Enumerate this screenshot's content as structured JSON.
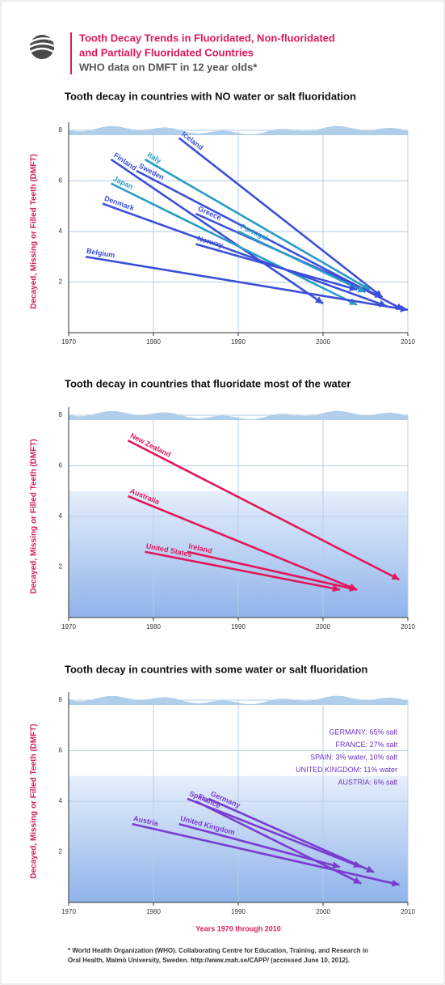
{
  "header": {
    "title": [
      "Tooth Decay Trends in Fluoridated, Non-fluoridated",
      "and Partially Fluoridated Countries"
    ],
    "subtitle": "WHO data on DMFT in 12 year olds*"
  },
  "chart_data": [
    {
      "type": "arrow",
      "title": "Tooth decay in countries with NO water or salt fluoridation",
      "ylabel": "Decayed, Missing or Filled Teeth (DMFT)",
      "xlim": [
        1970,
        2010
      ],
      "xticks": [
        1970,
        1980,
        1990,
        2000,
        2010
      ],
      "ylim": [
        0,
        8
      ],
      "yticks": [
        2,
        4,
        6,
        8
      ],
      "grid": true,
      "series": [
        {
          "name": "Iceland",
          "color": "#3b4fd8",
          "x": [
            1983,
            2007
          ],
          "values": [
            7.7,
            1.4
          ]
        },
        {
          "name": "Italy",
          "color": "#2b9cc4",
          "x": [
            1979,
            2005.5
          ],
          "values": [
            6.85,
            1.7
          ]
        },
        {
          "name": "Finland",
          "color": "#3b4fd8",
          "x": [
            1975,
            2000
          ],
          "values": [
            6.85,
            1.15
          ]
        },
        {
          "name": "Sweden",
          "color": "#3b4fd8",
          "x": [
            1978,
            2009.5
          ],
          "values": [
            6.4,
            0.9
          ]
        },
        {
          "name": "Japan",
          "color": "#2b9cc4",
          "x": [
            1975,
            2004
          ],
          "values": [
            5.9,
            1.1
          ]
        },
        {
          "name": "Denmark",
          "color": "#3b4fd8",
          "x": [
            1974,
            2007.5
          ],
          "values": [
            5.1,
            1.05
          ]
        },
        {
          "name": "Greece",
          "color": "#3b4fd8",
          "x": [
            1985,
            2007
          ],
          "values": [
            4.7,
            1.4
          ]
        },
        {
          "name": "Portugal",
          "color": "#2b9cc4",
          "x": [
            1990,
            2005
          ],
          "values": [
            4.0,
            1.6
          ]
        },
        {
          "name": "Norway",
          "color": "#3b4fd8",
          "x": [
            1985,
            2004
          ],
          "values": [
            3.5,
            1.7
          ]
        },
        {
          "name": "Belgium",
          "color": "#3b4fd8",
          "x": [
            1972,
            2010
          ],
          "values": [
            3.0,
            0.9
          ]
        }
      ]
    },
    {
      "type": "arrow",
      "title": "Tooth decay in countries that fluoridate most of the water",
      "ylabel": "Decayed, Missing or Filled Teeth (DMFT)",
      "xlim": [
        1970,
        2010
      ],
      "xticks": [
        1970,
        1980,
        1990,
        2000,
        2010
      ],
      "ylim": [
        0,
        8
      ],
      "yticks": [
        2,
        4,
        6,
        8
      ],
      "grid": true,
      "shade_below": 5,
      "series": [
        {
          "name": "New Zealand",
          "color": "#e0185a",
          "x": [
            1977,
            2009
          ],
          "values": [
            7.0,
            1.5
          ]
        },
        {
          "name": "Australia",
          "color": "#e0185a",
          "x": [
            1977,
            2004
          ],
          "values": [
            4.8,
            1.1
          ]
        },
        {
          "name": "United States",
          "color": "#e0185a",
          "x": [
            1979,
            2002
          ],
          "values": [
            2.6,
            1.1
          ]
        },
        {
          "name": "Ireland",
          "color": "#e0185a",
          "x": [
            1984,
            2004
          ],
          "values": [
            2.6,
            1.1
          ]
        }
      ]
    },
    {
      "type": "arrow",
      "title": "Tooth decay in countries with some water or salt fluoridation",
      "ylabel": "Decayed, Missing or Filled Teeth (DMFT)",
      "xlabel": "Years 1970 through 2010",
      "xlim": [
        1970,
        2010
      ],
      "xticks": [
        1970,
        1980,
        1990,
        2000,
        2010
      ],
      "ylim": [
        0,
        8
      ],
      "yticks": [
        2,
        4,
        6,
        8
      ],
      "grid": true,
      "shade_below": 5,
      "notes": [
        "GERMANY: 65% salt",
        "FRANCE: 27% salt",
        "SPAIN: 3% water, 10% salt",
        "UNITED KINGDOM: 11% water",
        "AUSTRIA: 6% salt"
      ],
      "notes_color": "#6a35c4",
      "series": [
        {
          "name": "Germany",
          "color": "#7a3ccf",
          "x": [
            1986.5,
            2006
          ],
          "values": [
            4.1,
            1.2
          ]
        },
        {
          "name": "France",
          "color": "#7a3ccf",
          "x": [
            1985,
            2004.5
          ],
          "values": [
            4.0,
            0.75
          ]
        },
        {
          "name": "Spain",
          "color": "#7a3ccf",
          "x": [
            1984,
            2004.5
          ],
          "values": [
            4.1,
            1.4
          ]
        },
        {
          "name": "United Kingdom",
          "color": "#7a3ccf",
          "x": [
            1983,
            2002
          ],
          "values": [
            3.1,
            1.4
          ]
        },
        {
          "name": "Austria",
          "color": "#7a3ccf",
          "x": [
            1977.5,
            2009
          ],
          "values": [
            3.1,
            0.7
          ]
        }
      ]
    }
  ],
  "footnote": [
    "* World Health Organization (WHO). Collaborating Centre for Education, Training, and Research in",
    "Oral Health, Malmö University, Sweden. http://www.mah.se/CAPP/ (accessed June 10, 2012)."
  ]
}
